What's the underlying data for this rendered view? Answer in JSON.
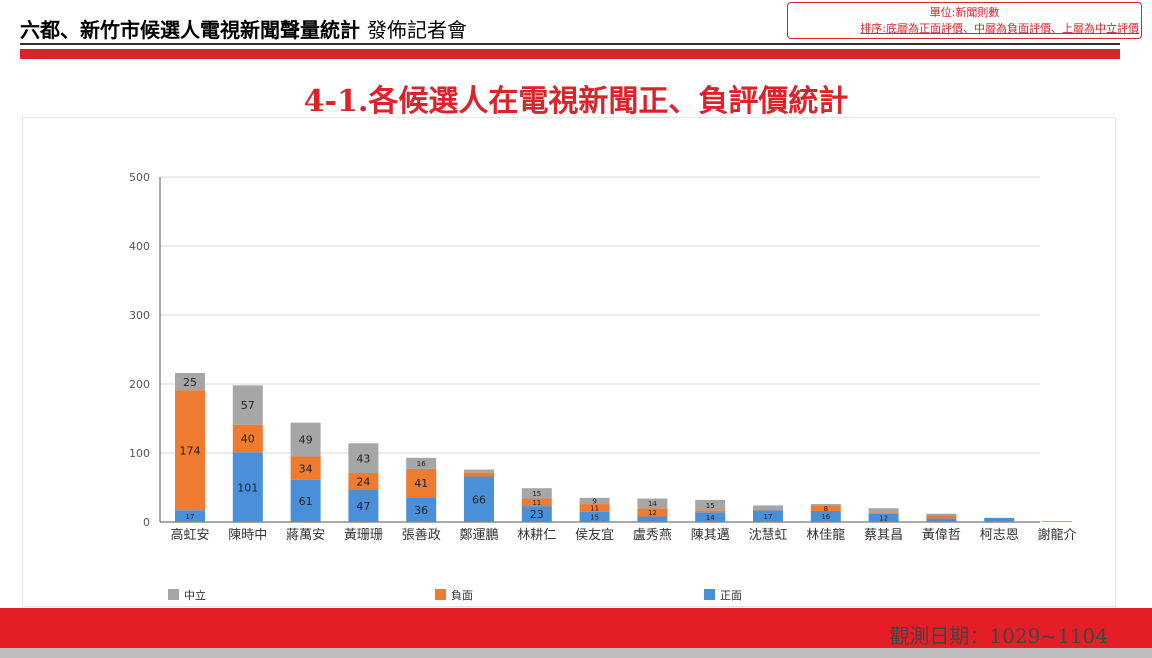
{
  "header": {
    "title": "六都、新竹市候選人電視新聞聲量統計",
    "subtitle": "發佈記者會"
  },
  "note": {
    "line1": "單位:新聞則數",
    "line2": "排序:底層為正面評價、中層為負面評價、上層為中立評價"
  },
  "footer": {
    "date": "觀測日期：1029~1104"
  },
  "colors": {
    "positive": "#4a90d9",
    "negative": "#ee7b30",
    "neutral": "#a6a6a6",
    "accent": "#d9242b"
  },
  "chart_data": {
    "type": "bar",
    "stacked": true,
    "title": "4-1.各候選人在電視新聞正、負評價統計",
    "categories": [
      "高虹安",
      "陳時中",
      "蔣萬安",
      "黃珊珊",
      "張善政",
      "鄭運鵬",
      "林耕仁",
      "侯友宜",
      "盧秀燕",
      "陳其邁",
      "沈慧虹",
      "林佳龍",
      "蔡其昌",
      "黃偉哲",
      "柯志恩",
      "謝龍介"
    ],
    "series": [
      {
        "name": "正面",
        "values": [
          17,
          101,
          61,
          47,
          36,
          66,
          23,
          15,
          8,
          14,
          17,
          16,
          12,
          5,
          6,
          1
        ],
        "labels": [
          "17",
          "101",
          "61",
          "47",
          "36",
          "66",
          "23",
          "15",
          "",
          "14",
          "17",
          "16",
          "12",
          "",
          "",
          ""
        ]
      },
      {
        "name": "負面",
        "values": [
          174,
          40,
          34,
          24,
          41,
          6,
          11,
          11,
          12,
          3,
          1,
          8,
          2,
          5,
          0,
          0
        ],
        "labels": [
          "174",
          "40",
          "34",
          "24",
          "41",
          "",
          "11",
          "11",
          "12",
          "",
          "",
          "8",
          "",
          "",
          "",
          ""
        ]
      },
      {
        "name": "中立",
        "values": [
          25,
          57,
          49,
          43,
          16,
          4,
          15,
          9,
          14,
          15,
          6,
          2,
          6,
          2,
          0,
          0
        ],
        "labels": [
          "25",
          "57",
          "49",
          "43",
          "16",
          "",
          "15",
          "9",
          "14",
          "15",
          "",
          "",
          "",
          "",
          "",
          ""
        ]
      }
    ],
    "ylim": [
      0,
      500
    ],
    "yticks": [
      0,
      100,
      200,
      300,
      400,
      500
    ],
    "grid": true,
    "legend": [
      "中立",
      "負面",
      "正面"
    ],
    "legend_position": "bottom"
  }
}
